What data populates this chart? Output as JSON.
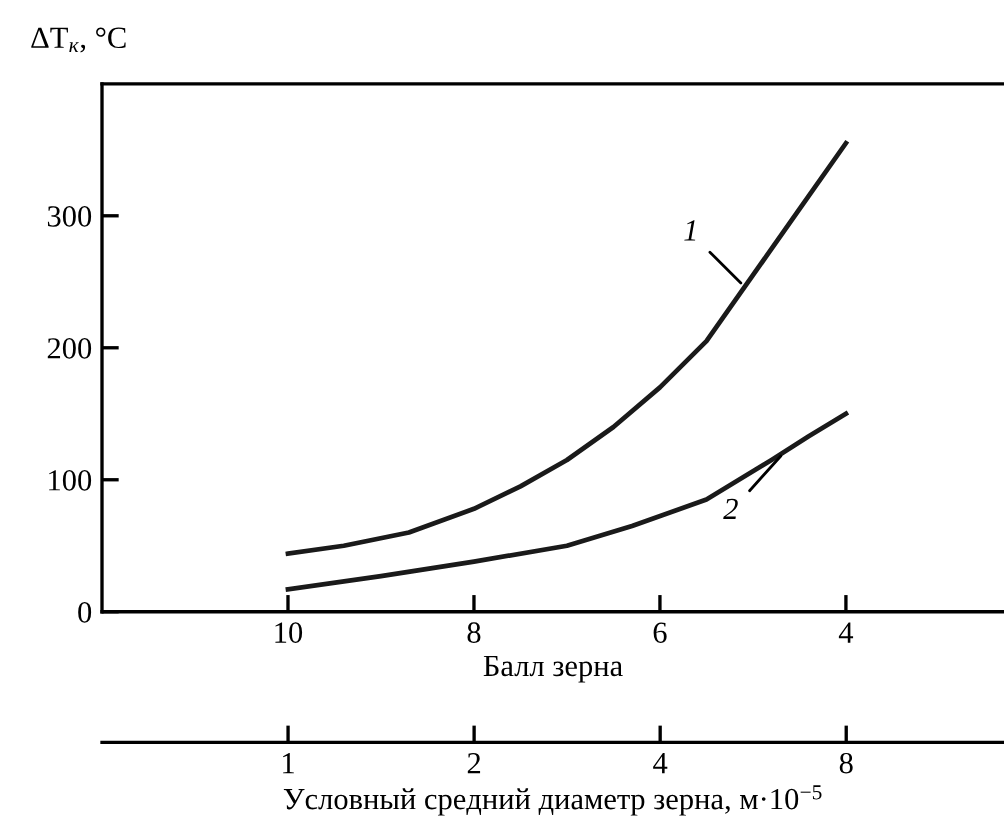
{
  "chart_data": {
    "type": "line",
    "ylabel": "ΔT$_{к}$, °C",
    "xlabel": "Балл зерна",
    "x2label": "Условный средний диаметр зерна, м·10$^{−5}$",
    "xlim": [
      12,
      2.3
    ],
    "xticks": [
      10,
      8,
      6,
      4
    ],
    "ylim": [
      0,
      400
    ],
    "yticks": [
      0,
      100,
      200,
      300
    ],
    "x2lim": [
      0.5,
      14.4
    ],
    "x2ticks": [
      1,
      2,
      4,
      8
    ],
    "log": "x2",
    "grid": false,
    "marker": "none",
    "line_style": "solid",
    "series": [
      {
        "color": "#1a1a1a",
        "x": [
          10,
          9.4,
          8.7,
          8,
          7.5,
          7,
          6.5,
          6,
          5.5,
          5,
          4.5,
          4
        ],
        "values": [
          44,
          50,
          60,
          78,
          95,
          115,
          140,
          170,
          205,
          255,
          305,
          355
        ]
      },
      {
        "color": "#1a1a1a",
        "x": [
          10,
          9,
          8,
          7,
          6.3,
          5.5,
          4.8,
          4.4,
          4
        ],
        "values": [
          17,
          27,
          38,
          50,
          65,
          85,
          115,
          133,
          150
        ]
      }
    ],
    "annotations": [
      {
        "text": "1",
        "x": 5.13,
        "y": 249
      },
      {
        "text": "2",
        "x": 4.7,
        "y": 118
      }
    ]
  }
}
